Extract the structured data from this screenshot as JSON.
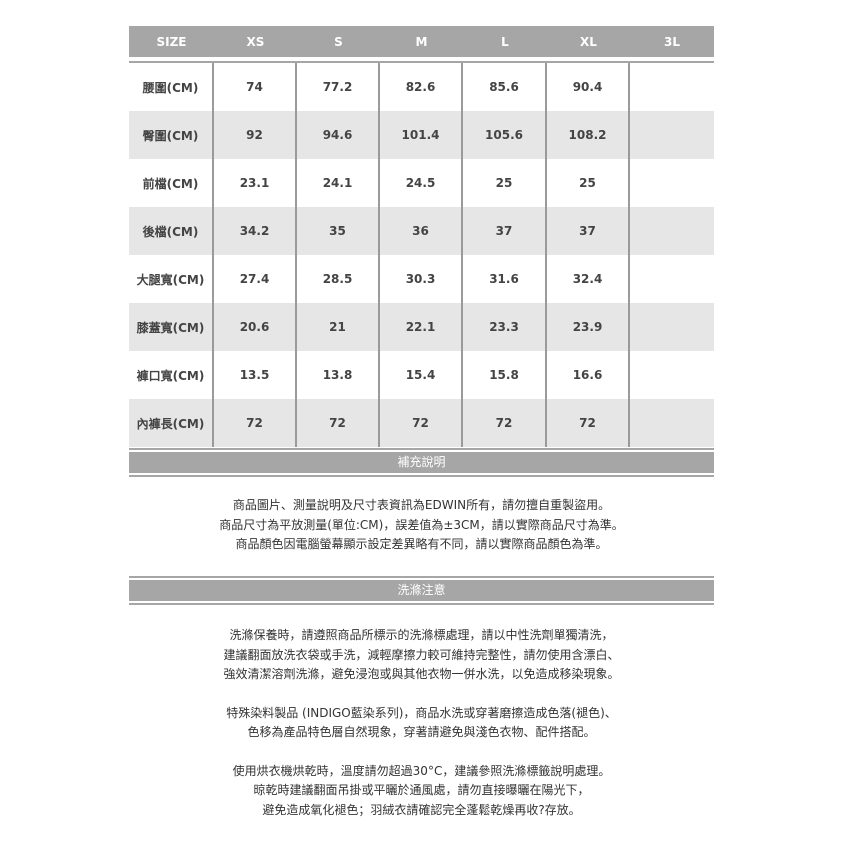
{
  "table": {
    "headers": [
      "SIZE",
      "XS",
      "S",
      "M",
      "L",
      "XL",
      "3L"
    ],
    "rows": [
      {
        "label": "腰圍(CM)",
        "values": [
          "74",
          "77.2",
          "82.6",
          "85.6",
          "90.4",
          ""
        ]
      },
      {
        "label": "臀圍(CM)",
        "values": [
          "92",
          "94.6",
          "101.4",
          "105.6",
          "108.2",
          ""
        ]
      },
      {
        "label": "前檔(CM)",
        "values": [
          "23.1",
          "24.1",
          "24.5",
          "25",
          "25",
          ""
        ]
      },
      {
        "label": "後檔(CM)",
        "values": [
          "34.2",
          "35",
          "36",
          "37",
          "37",
          ""
        ]
      },
      {
        "label": "大腿寬(CM)",
        "values": [
          "27.4",
          "28.5",
          "30.3",
          "31.6",
          "32.4",
          ""
        ]
      },
      {
        "label": "膝蓋寬(CM)",
        "values": [
          "20.6",
          "21",
          "22.1",
          "23.3",
          "23.9",
          ""
        ]
      },
      {
        "label": "褲口寬(CM)",
        "values": [
          "13.5",
          "13.8",
          "15.4",
          "15.8",
          "16.6",
          ""
        ]
      },
      {
        "label": "內褲長(CM)",
        "values": [
          "72",
          "72",
          "72",
          "72",
          "72",
          ""
        ]
      }
    ]
  },
  "supplement": {
    "title": "補充說明",
    "lines": [
      "商品圖片、測量說明及尺寸表資訊為EDWIN所有，請勿擅自重製盜用。",
      "商品尺寸為平放測量(單位:CM)，誤差值為±3CM，請以實際商品尺寸為準。",
      "商品顏色因電腦螢幕顯示設定差異略有不同，請以實際商品顏色為準。"
    ]
  },
  "care": {
    "title": "洗滌注意",
    "paragraphs": [
      [
        "洗滌保養時，請遵照商品所標示的洗滌標處理，請以中性洗劑單獨清洗，",
        "建議翻面放洗衣袋或手洗，減輕摩擦力較可維持完整性，請勿使用含漂白、",
        "強效清潔溶劑洗滌，避免浸泡或與其他衣物一併水洗，以免造成移染現象。"
      ],
      [
        "特殊染料製品 (INDIGO藍染系列)，商品水洗或穿著磨擦造成色落(褪色)、",
        "色移為產品特色層自然現象，穿著請避免與淺色衣物、配件搭配。"
      ],
      [
        "使用烘衣機烘乾時，溫度請勿超過30°C，建議參照洗滌標籤說明處理。",
        "晾乾時建議翻面吊掛或平曬於通風處，請勿直接曝曬在陽光下，",
        "避免造成氧化褪色；羽絨衣請確認完全蓬鬆乾燥再收?存放。"
      ]
    ]
  }
}
